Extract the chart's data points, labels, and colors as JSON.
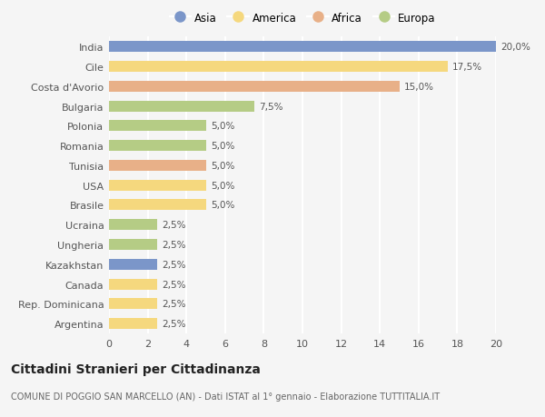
{
  "categories": [
    "India",
    "Cile",
    "Costa d'Avorio",
    "Bulgaria",
    "Polonia",
    "Romania",
    "Tunisia",
    "USA",
    "Brasile",
    "Ucraina",
    "Ungheria",
    "Kazakhstan",
    "Canada",
    "Rep. Dominicana",
    "Argentina"
  ],
  "values": [
    20.0,
    17.5,
    15.0,
    7.5,
    5.0,
    5.0,
    5.0,
    5.0,
    5.0,
    2.5,
    2.5,
    2.5,
    2.5,
    2.5,
    2.5
  ],
  "continents": [
    "Asia",
    "America",
    "Africa",
    "Europa",
    "Europa",
    "Europa",
    "Africa",
    "America",
    "America",
    "Europa",
    "Europa",
    "Asia",
    "America",
    "America",
    "America"
  ],
  "continent_colors": {
    "Asia": "#7b96c9",
    "America": "#f5d87e",
    "Africa": "#e8b088",
    "Europa": "#b5cc85"
  },
  "legend_order": [
    "Asia",
    "America",
    "Africa",
    "Europa"
  ],
  "title": "Cittadini Stranieri per Cittadinanza",
  "subtitle": "COMUNE DI POGGIO SAN MARCELLO (AN) - Dati ISTAT al 1° gennaio - Elaborazione TUTTITALIA.IT",
  "xlim": [
    0,
    20
  ],
  "xticks": [
    0,
    2,
    4,
    6,
    8,
    10,
    12,
    14,
    16,
    18,
    20
  ],
  "background_color": "#f5f5f5",
  "plot_bg_color": "#f5f5f5",
  "bar_height": 0.55,
  "grid_color": "#ffffff",
  "grid_linewidth": 1.5,
  "label_fontsize": 7.5,
  "tick_fontsize": 8,
  "title_fontsize": 10,
  "subtitle_fontsize": 7,
  "legend_fontsize": 8.5
}
